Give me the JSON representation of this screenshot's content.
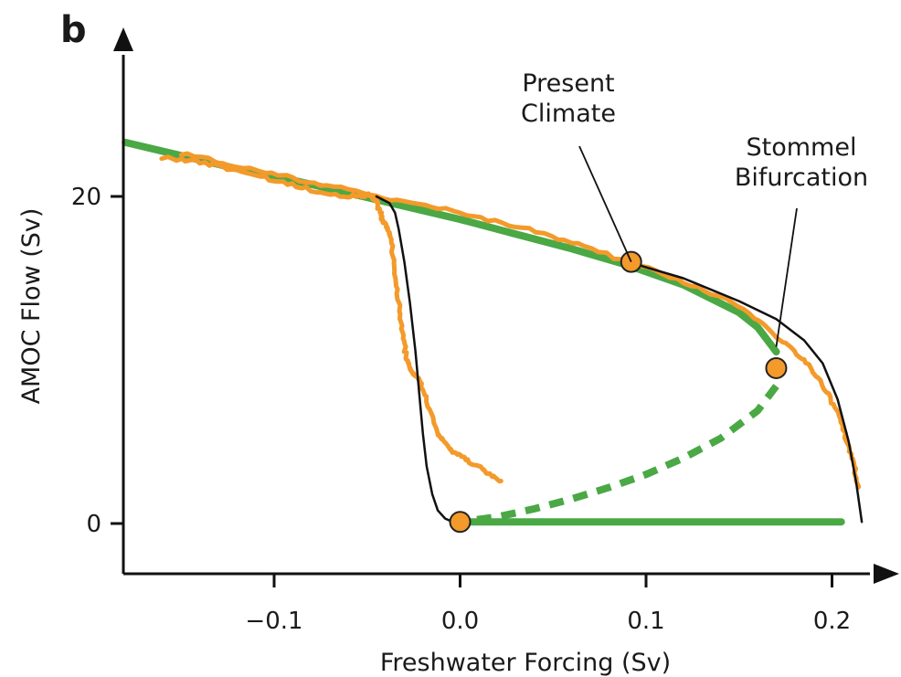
{
  "chart_data": {
    "type": "line",
    "panel_label": "b",
    "title": "",
    "xlabel": "Freshwater Forcing (Sv)",
    "ylabel": "AMOC Flow (Sv)",
    "xlim": [
      -0.18,
      0.22
    ],
    "ylim": [
      -3,
      30
    ],
    "x_ticks": [
      -0.1,
      0.0,
      0.1,
      0.2
    ],
    "x_tick_labels": [
      "−0.1",
      "0.0",
      "0.1",
      "0.2"
    ],
    "y_ticks": [
      0,
      20
    ],
    "y_tick_labels": [
      "0",
      "20"
    ],
    "grid": false,
    "legend": "none",
    "series": [
      {
        "style": "solid",
        "color": "#4aa845",
        "x": [
          -0.18,
          -0.15,
          -0.12,
          -0.09,
          -0.06,
          -0.03,
          0.0,
          0.03,
          0.06,
          0.09,
          0.12,
          0.15,
          0.16,
          0.17
        ],
        "y": [
          23.3,
          22.5,
          21.7,
          21.0,
          20.2,
          19.4,
          18.6,
          17.7,
          16.8,
          15.8,
          14.6,
          12.9,
          12.0,
          10.5
        ]
      },
      {
        "style": "dashed",
        "color": "#4aa845",
        "x": [
          0.17,
          0.16,
          0.14,
          0.12,
          0.1,
          0.08,
          0.06,
          0.04,
          0.02,
          0.0
        ],
        "y": [
          8.4,
          6.9,
          5.2,
          4.0,
          3.0,
          2.2,
          1.5,
          0.9,
          0.4,
          0.1
        ]
      },
      {
        "style": "solid",
        "color": "#4aa845",
        "x": [
          0.0,
          0.205
        ],
        "y": [
          0.1,
          0.1
        ]
      },
      {
        "style": "thin",
        "color": "#111111",
        "x": [
          -0.045,
          -0.038,
          -0.035,
          -0.033,
          -0.03,
          -0.027,
          -0.024,
          -0.022,
          -0.02,
          -0.018,
          -0.015,
          -0.012,
          -0.008,
          -0.004,
          0.0
        ],
        "y": [
          20.0,
          19.6,
          19.0,
          18.0,
          16.0,
          13.5,
          10.5,
          8.0,
          5.5,
          3.5,
          1.8,
          0.8,
          0.3,
          0.1,
          0.0
        ]
      },
      {
        "style": "thin",
        "color": "#111111",
        "x": [
          0.09,
          0.12,
          0.15,
          0.17,
          0.185,
          0.195,
          0.203,
          0.209,
          0.213,
          0.216
        ],
        "y": [
          16.0,
          15.0,
          13.6,
          12.5,
          11.2,
          9.8,
          7.6,
          5.0,
          2.5,
          0.1
        ]
      },
      {
        "style": "noisy",
        "color": "#f39a2b",
        "x": [
          -0.16,
          -0.14,
          -0.12,
          -0.1,
          -0.08,
          -0.06,
          -0.048,
          -0.045,
          -0.043,
          -0.041,
          -0.039,
          -0.037,
          -0.035,
          -0.033,
          -0.031,
          -0.029,
          -0.027,
          -0.025,
          -0.022,
          -0.018,
          -0.012,
          -0.005,
          0.003,
          0.012,
          0.022
        ],
        "y": [
          22.4,
          22.1,
          21.6,
          21.0,
          20.4,
          20.0,
          20.1,
          19.7,
          19.0,
          18.4,
          18.0,
          17.2,
          15.5,
          13.5,
          11.7,
          10.2,
          9.4,
          9.2,
          8.8,
          7.5,
          5.5,
          4.5,
          3.9,
          3.3,
          2.6
        ]
      },
      {
        "style": "noisy",
        "color": "#f39a2b",
        "x": [
          -0.15,
          -0.12,
          -0.09,
          -0.06,
          -0.03,
          0.0,
          0.03,
          0.06,
          0.09,
          0.12,
          0.15,
          0.17,
          0.185,
          0.195,
          0.203,
          0.208,
          0.212,
          0.214
        ],
        "y": [
          22.6,
          21.9,
          21.1,
          20.4,
          19.7,
          19.0,
          18.2,
          17.2,
          16.0,
          14.8,
          13.3,
          11.5,
          10.0,
          8.5,
          6.8,
          5.0,
          3.5,
          2.2
        ]
      }
    ],
    "points": [
      {
        "x": 0.0,
        "y": 0.1,
        "color": "#f39a2b"
      },
      {
        "x": 0.092,
        "y": 16.0,
        "color": "#f39a2b"
      },
      {
        "x": 0.17,
        "y": 9.5,
        "color": "#f39a2b"
      }
    ],
    "annotations": [
      {
        "lines": [
          "Present",
          "Climate"
        ],
        "target_x": 0.092,
        "target_y": 16.0
      },
      {
        "lines": [
          "Stommel",
          "Bifurcation"
        ],
        "target_x": 0.17,
        "target_y": 10.8
      }
    ]
  }
}
